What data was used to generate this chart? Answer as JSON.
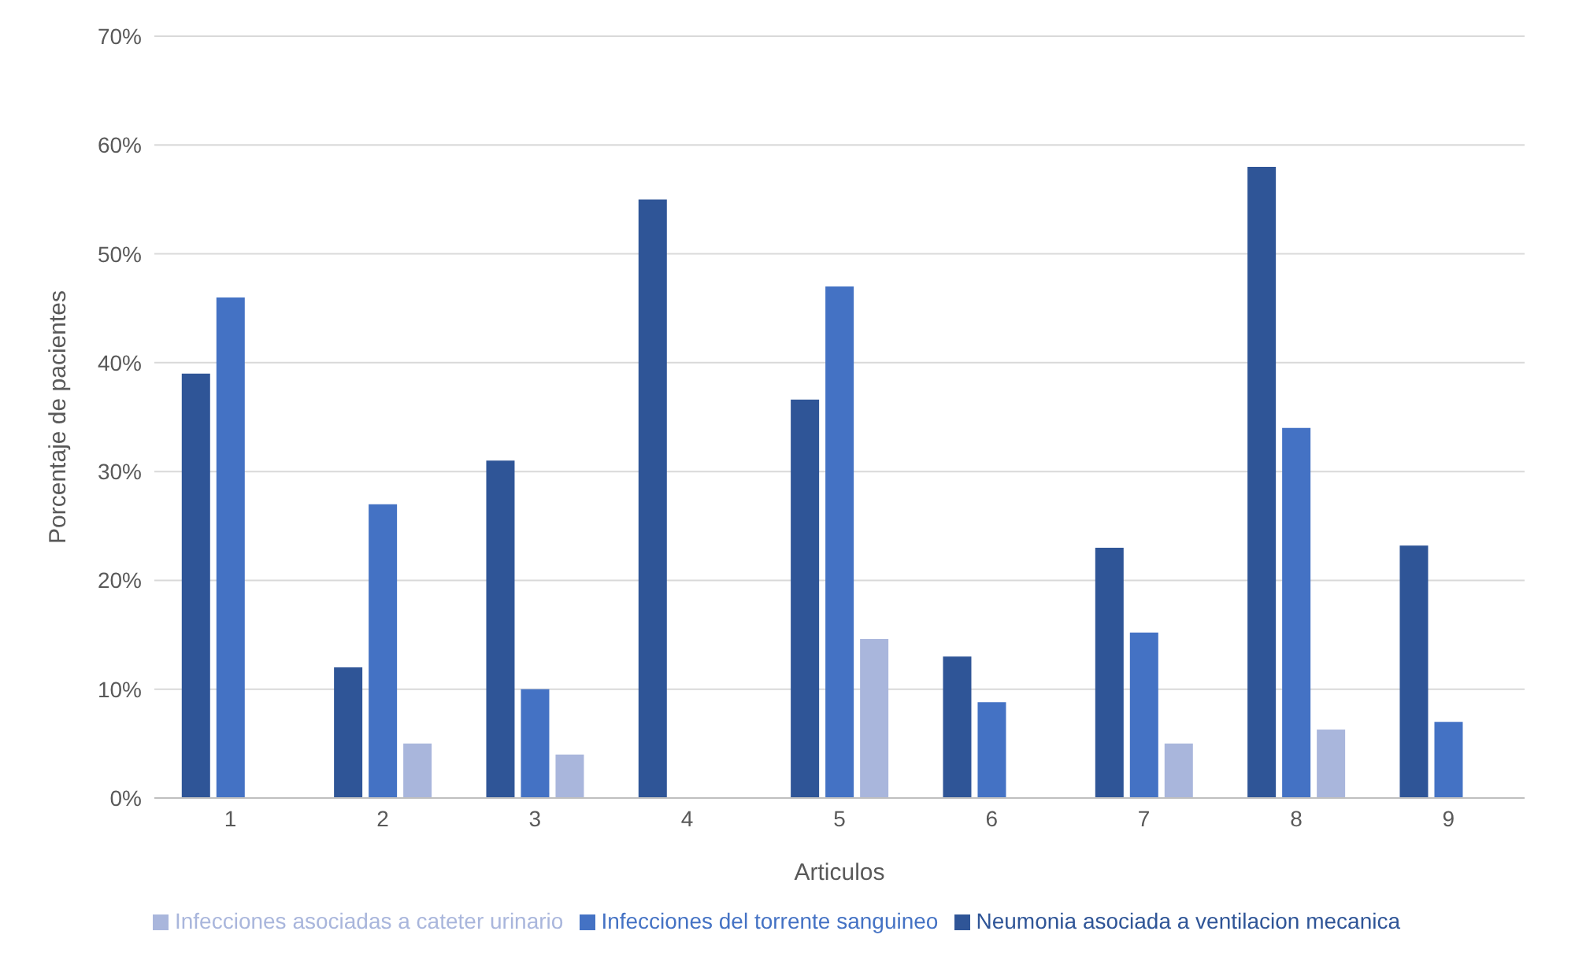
{
  "chart_data": {
    "type": "bar",
    "xlabel": "Articulos",
    "ylabel": "Porcentaje de pacientes",
    "categories": [
      "1",
      "2",
      "3",
      "4",
      "5",
      "6",
      "7",
      "8",
      "9"
    ],
    "series": [
      {
        "name": "Neumonia asociada a ventilacion mecanica",
        "color": "#2f5597",
        "values": [
          39,
          12,
          31,
          55,
          36.6,
          13,
          23,
          58,
          23.2
        ]
      },
      {
        "name": "Infecciones del torrente sanguineo",
        "color": "#4472c4",
        "values": [
          46,
          27,
          10,
          null,
          47,
          8.8,
          15.2,
          34,
          7
        ]
      },
      {
        "name": "Infecciones asociadas a cateter urinario",
        "color": "#a9b6dc",
        "values": [
          null,
          5,
          4,
          null,
          14.6,
          null,
          5,
          6.3,
          null
        ]
      }
    ],
    "ylim": [
      0,
      70
    ],
    "yticks": [
      {
        "value": 0,
        "label": "0%"
      },
      {
        "value": 10,
        "label": "10%"
      },
      {
        "value": 20,
        "label": "20%"
      },
      {
        "value": 30,
        "label": "30%"
      },
      {
        "value": 40,
        "label": "40%"
      },
      {
        "value": 50,
        "label": "50%"
      },
      {
        "value": 60,
        "label": "60%"
      },
      {
        "value": 70,
        "label": "70%"
      }
    ],
    "grid": "y",
    "legend": "bottom"
  }
}
